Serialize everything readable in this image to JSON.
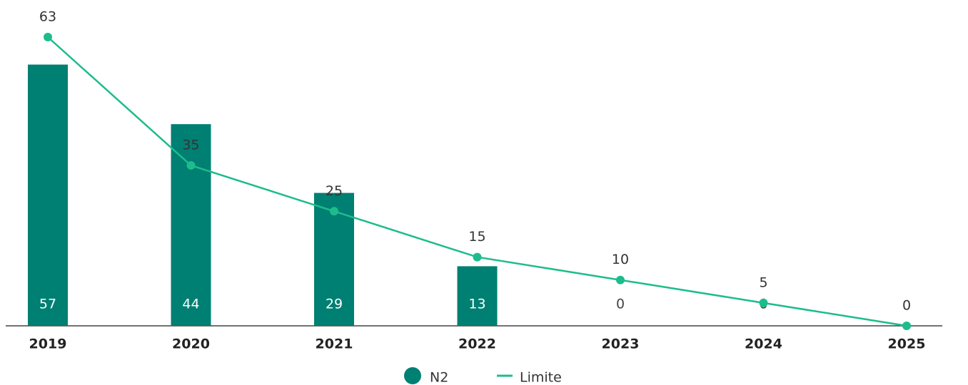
{
  "chart_data": {
    "type": "bar_line",
    "categories": [
      "2019",
      "2020",
      "2021",
      "2022",
      "2023",
      "2024",
      "2025"
    ],
    "ylim": [
      0,
      66
    ],
    "series": [
      {
        "name": "N2",
        "type": "bar",
        "color": "#007f73",
        "values": [
          57,
          44,
          29,
          13,
          0,
          0,
          null
        ]
      },
      {
        "name": "Limite",
        "type": "line",
        "color": "#1dbc8c",
        "values": [
          63,
          35,
          25,
          15,
          10,
          5,
          0
        ]
      }
    ],
    "legend": "bottom"
  }
}
